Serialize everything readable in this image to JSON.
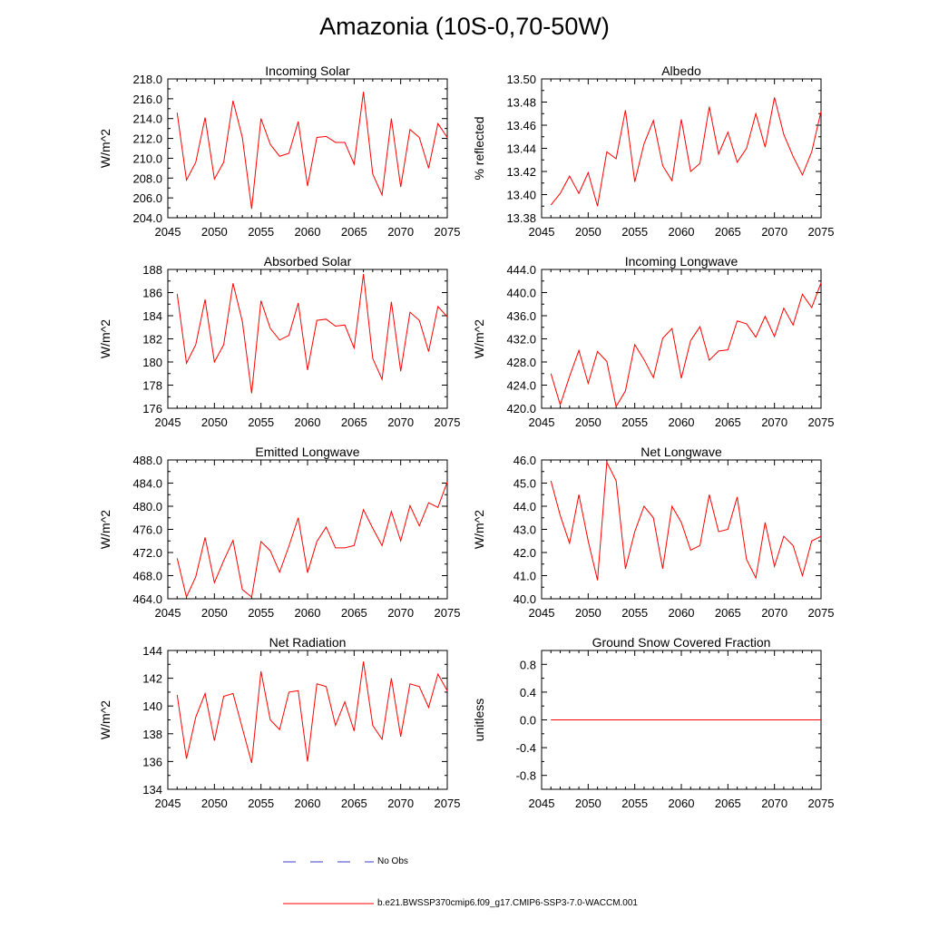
{
  "title": "Amazonia (10S-0,70-50W)",
  "legend": {
    "obs_label": "No Obs",
    "model_label": "b.e21.BWSSP370cmip6.f09_g17.CMIP6-SSP3-7.0-WACCM.001",
    "obs_color": "#3c3cc8",
    "model_color": "#ff0000"
  },
  "chart_data": [
    {
      "type": "line",
      "title": "Incoming Solar",
      "xlabel": "",
      "ylabel": "W/m^2",
      "xlim": [
        2045,
        2075
      ],
      "ylim": [
        204,
        218
      ],
      "xticks": [
        2045,
        2050,
        2055,
        2060,
        2065,
        2070,
        2075
      ],
      "yticks": [
        204,
        206,
        208,
        210,
        212,
        214,
        216,
        218
      ],
      "ytick_labels": [
        "204.0",
        "206.0",
        "208.0",
        "210.0",
        "212.0",
        "214.0",
        "216.0",
        "218.0"
      ],
      "x": [
        2046,
        2047,
        2048,
        2049,
        2050,
        2051,
        2052,
        2053,
        2054,
        2055,
        2056,
        2057,
        2058,
        2059,
        2060,
        2061,
        2062,
        2063,
        2064,
        2065,
        2066,
        2067,
        2068,
        2069,
        2070,
        2071,
        2072,
        2073,
        2074,
        2075
      ],
      "series": [
        {
          "name": "b.e21.BWSSP370cmip6.f09_g17.CMIP6-SSP3-7.0-WACCM.001",
          "values": [
            214.6,
            207.8,
            209.6,
            214.1,
            207.9,
            209.6,
            215.8,
            212.1,
            204.9,
            214.0,
            211.4,
            210.2,
            210.5,
            213.7,
            207.2,
            212.1,
            212.2,
            211.6,
            211.6,
            209.4,
            216.7,
            208.4,
            206.3,
            214.0,
            207.1,
            212.9,
            212.1,
            209.0,
            213.5,
            212.1
          ]
        }
      ]
    },
    {
      "type": "line",
      "title": "Albedo",
      "xlabel": "",
      "ylabel": "% reflected",
      "xlim": [
        2045,
        2075
      ],
      "ylim": [
        13.38,
        13.5
      ],
      "xticks": [
        2045,
        2050,
        2055,
        2060,
        2065,
        2070,
        2075
      ],
      "yticks": [
        13.38,
        13.4,
        13.42,
        13.44,
        13.46,
        13.48,
        13.5
      ],
      "ytick_labels": [
        "13.38",
        "13.40",
        "13.42",
        "13.44",
        "13.46",
        "13.48",
        "13.50"
      ],
      "x": [
        2046,
        2047,
        2048,
        2049,
        2050,
        2051,
        2052,
        2053,
        2054,
        2055,
        2056,
        2057,
        2058,
        2059,
        2060,
        2061,
        2062,
        2063,
        2064,
        2065,
        2066,
        2067,
        2068,
        2069,
        2070,
        2071,
        2072,
        2073,
        2074,
        2075
      ],
      "series": [
        {
          "name": "b.e21.BWSSP370cmip6.f09_g17.CMIP6-SSP3-7.0-WACCM.001",
          "values": [
            13.391,
            13.401,
            13.416,
            13.401,
            13.419,
            13.39,
            13.437,
            13.431,
            13.473,
            13.411,
            13.444,
            13.464,
            13.425,
            13.412,
            13.465,
            13.42,
            13.427,
            13.476,
            13.435,
            13.454,
            13.428,
            13.44,
            13.47,
            13.441,
            13.484,
            13.452,
            13.433,
            13.417,
            13.437,
            13.472
          ]
        }
      ]
    },
    {
      "type": "line",
      "title": "Absorbed Solar",
      "xlabel": "",
      "ylabel": "W/m^2",
      "xlim": [
        2045,
        2075
      ],
      "ylim": [
        176,
        188
      ],
      "xticks": [
        2045,
        2050,
        2055,
        2060,
        2065,
        2070,
        2075
      ],
      "yticks": [
        176,
        178,
        180,
        182,
        184,
        186,
        188
      ],
      "ytick_labels": [
        "176",
        "178",
        "180",
        "182",
        "184",
        "186",
        "188"
      ],
      "x": [
        2046,
        2047,
        2048,
        2049,
        2050,
        2051,
        2052,
        2053,
        2054,
        2055,
        2056,
        2057,
        2058,
        2059,
        2060,
        2061,
        2062,
        2063,
        2064,
        2065,
        2066,
        2067,
        2068,
        2069,
        2070,
        2071,
        2072,
        2073,
        2074,
        2075
      ],
      "series": [
        {
          "name": "b.e21.BWSSP370cmip6.f09_g17.CMIP6-SSP3-7.0-WACCM.001",
          "values": [
            185.9,
            179.9,
            181.5,
            185.4,
            180.0,
            181.5,
            186.8,
            183.5,
            177.3,
            185.3,
            182.9,
            181.9,
            182.3,
            185.1,
            179.3,
            183.6,
            183.7,
            183.1,
            183.2,
            181.2,
            187.6,
            180.3,
            178.5,
            185.2,
            179.2,
            184.3,
            183.6,
            180.9,
            184.8,
            183.9
          ]
        }
      ]
    },
    {
      "type": "line",
      "title": "Incoming Longwave",
      "xlabel": "",
      "ylabel": "W/m^2",
      "xlim": [
        2045,
        2075
      ],
      "ylim": [
        420,
        444
      ],
      "xticks": [
        2045,
        2050,
        2055,
        2060,
        2065,
        2070,
        2075
      ],
      "yticks": [
        420,
        424,
        428,
        432,
        436,
        440,
        444
      ],
      "ytick_labels": [
        "420.0",
        "424.0",
        "428.0",
        "432.0",
        "436.0",
        "440.0",
        "444.0"
      ],
      "x": [
        2046,
        2047,
        2048,
        2049,
        2050,
        2051,
        2052,
        2053,
        2054,
        2055,
        2056,
        2057,
        2058,
        2059,
        2060,
        2061,
        2062,
        2063,
        2064,
        2065,
        2066,
        2067,
        2068,
        2069,
        2070,
        2071,
        2072,
        2073,
        2074,
        2075
      ],
      "series": [
        {
          "name": "b.e21.BWSSP370cmip6.f09_g17.CMIP6-SSP3-7.0-WACCM.001",
          "values": [
            426.0,
            420.6,
            425.5,
            430.0,
            424.3,
            429.8,
            428.1,
            420.3,
            423.0,
            431.0,
            428.4,
            425.3,
            432.1,
            433.8,
            425.2,
            431.7,
            434.1,
            428.3,
            429.9,
            430.1,
            435.1,
            434.6,
            432.3,
            435.9,
            432.4,
            437.3,
            434.4,
            439.7,
            437.4,
            441.7
          ]
        }
      ]
    },
    {
      "type": "line",
      "title": "Emitted Longwave",
      "xlabel": "",
      "ylabel": "W/m^2",
      "xlim": [
        2045,
        2075
      ],
      "ylim": [
        464,
        488
      ],
      "xticks": [
        2045,
        2050,
        2055,
        2060,
        2065,
        2070,
        2075
      ],
      "yticks": [
        464,
        468,
        472,
        476,
        480,
        484,
        488
      ],
      "ytick_labels": [
        "464.0",
        "468.0",
        "472.0",
        "476.0",
        "480.0",
        "484.0",
        "488.0"
      ],
      "x": [
        2046,
        2047,
        2048,
        2049,
        2050,
        2051,
        2052,
        2053,
        2054,
        2055,
        2056,
        2057,
        2058,
        2059,
        2060,
        2061,
        2062,
        2063,
        2064,
        2065,
        2066,
        2067,
        2068,
        2069,
        2070,
        2071,
        2072,
        2073,
        2074,
        2075
      ],
      "series": [
        {
          "name": "b.e21.BWSSP370cmip6.f09_g17.CMIP6-SSP3-7.0-WACCM.001",
          "values": [
            471.0,
            464.3,
            467.8,
            474.6,
            466.8,
            470.6,
            474.1,
            465.6,
            464.3,
            473.9,
            472.3,
            468.6,
            473.1,
            478.0,
            468.5,
            473.9,
            476.4,
            472.8,
            472.8,
            473.2,
            479.4,
            476.2,
            473.2,
            479.1,
            474.0,
            480.1,
            476.6,
            480.6,
            479.8,
            484.2
          ]
        }
      ]
    },
    {
      "type": "line",
      "title": "Net Longwave",
      "xlabel": "",
      "ylabel": "W/m^2",
      "xlim": [
        2045,
        2075
      ],
      "ylim": [
        40,
        46
      ],
      "xticks": [
        2045,
        2050,
        2055,
        2060,
        2065,
        2070,
        2075
      ],
      "yticks": [
        40,
        41,
        42,
        43,
        44,
        45,
        46
      ],
      "ytick_labels": [
        "40.0",
        "41.0",
        "42.0",
        "43.0",
        "44.0",
        "45.0",
        "46.0"
      ],
      "x": [
        2046,
        2047,
        2048,
        2049,
        2050,
        2051,
        2052,
        2053,
        2054,
        2055,
        2056,
        2057,
        2058,
        2059,
        2060,
        2061,
        2062,
        2063,
        2064,
        2065,
        2066,
        2067,
        2068,
        2069,
        2070,
        2071,
        2072,
        2073,
        2074,
        2075
      ],
      "series": [
        {
          "name": "b.e21.BWSSP370cmip6.f09_g17.CMIP6-SSP3-7.0-WACCM.001",
          "values": [
            45.1,
            43.6,
            42.4,
            44.5,
            42.5,
            40.8,
            45.9,
            45.1,
            41.3,
            42.9,
            44.0,
            43.5,
            41.3,
            44.0,
            43.3,
            42.1,
            42.3,
            44.5,
            42.9,
            43.0,
            44.4,
            41.7,
            40.9,
            43.3,
            41.4,
            42.7,
            42.3,
            41.0,
            42.5,
            42.7
          ]
        }
      ]
    },
    {
      "type": "line",
      "title": "Net Radiation",
      "xlabel": "",
      "ylabel": "W/m^2",
      "xlim": [
        2045,
        2075
      ],
      "ylim": [
        134,
        144
      ],
      "xticks": [
        2045,
        2050,
        2055,
        2060,
        2065,
        2070,
        2075
      ],
      "yticks": [
        134,
        136,
        138,
        140,
        142,
        144
      ],
      "ytick_labels": [
        "134",
        "136",
        "138",
        "140",
        "142",
        "144"
      ],
      "x": [
        2046,
        2047,
        2048,
        2049,
        2050,
        2051,
        2052,
        2053,
        2054,
        2055,
        2056,
        2057,
        2058,
        2059,
        2060,
        2061,
        2062,
        2063,
        2064,
        2065,
        2066,
        2067,
        2068,
        2069,
        2070,
        2071,
        2072,
        2073,
        2074,
        2075
      ],
      "series": [
        {
          "name": "b.e21.BWSSP370cmip6.f09_g17.CMIP6-SSP3-7.0-WACCM.001",
          "values": [
            140.8,
            136.2,
            139.2,
            140.9,
            137.5,
            140.7,
            140.9,
            138.4,
            135.9,
            142.5,
            139.0,
            138.3,
            141.0,
            141.1,
            136.0,
            141.6,
            141.4,
            138.6,
            140.3,
            138.2,
            143.2,
            138.6,
            137.6,
            142.0,
            137.8,
            141.6,
            141.4,
            139.9,
            142.3,
            141.1
          ]
        }
      ]
    },
    {
      "type": "line",
      "title": "Ground Snow Covered Fraction",
      "xlabel": "",
      "ylabel": "unitless",
      "xlim": [
        2045,
        2075
      ],
      "ylim": [
        -1.0,
        1.0
      ],
      "xticks": [
        2045,
        2050,
        2055,
        2060,
        2065,
        2070,
        2075
      ],
      "yticks": [
        -0.8,
        -0.4,
        0.0,
        0.4,
        0.8
      ],
      "ytick_labels": [
        "-0.8",
        "-0.4",
        "0.0",
        "0.4",
        "0.8"
      ],
      "x": [
        2046,
        2047,
        2048,
        2049,
        2050,
        2051,
        2052,
        2053,
        2054,
        2055,
        2056,
        2057,
        2058,
        2059,
        2060,
        2061,
        2062,
        2063,
        2064,
        2065,
        2066,
        2067,
        2068,
        2069,
        2070,
        2071,
        2072,
        2073,
        2074,
        2075
      ],
      "series": [
        {
          "name": "b.e21.BWSSP370cmip6.f09_g17.CMIP6-SSP3-7.0-WACCM.001",
          "values": [
            0,
            0,
            0,
            0,
            0,
            0,
            0,
            0,
            0,
            0,
            0,
            0,
            0,
            0,
            0,
            0,
            0,
            0,
            0,
            0,
            0,
            0,
            0,
            0,
            0,
            0,
            0,
            0,
            0,
            0
          ]
        }
      ]
    }
  ]
}
